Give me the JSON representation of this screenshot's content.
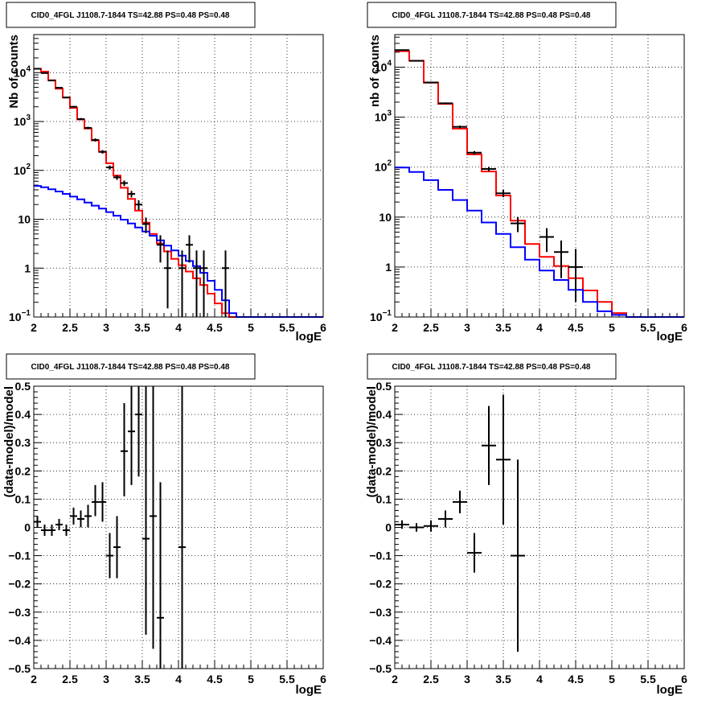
{
  "chart_data": [
    {
      "panel": "top-left",
      "type": "line",
      "title": "CID0_4FGL J1108.7-1844 TS=42.88 PS=0.48 PS=0.48",
      "xlabel": "logE",
      "ylabel": "Nb of counts",
      "xlim": [
        2,
        6
      ],
      "ylim": [
        0.1,
        60000
      ],
      "yscale": "log",
      "grid": true,
      "xticks": [
        "2",
        "2.5",
        "3",
        "3.5",
        "4",
        "4.5",
        "5",
        "5.5",
        "6"
      ],
      "yticks": [
        {
          "value": 0.1,
          "base": "10",
          "exp": "−1"
        },
        {
          "value": 1,
          "label": "1"
        },
        {
          "value": 10,
          "label": "10"
        },
        {
          "value": 100,
          "base": "10",
          "exp": "2"
        },
        {
          "value": 1000,
          "base": "10",
          "exp": "3"
        },
        {
          "value": 10000,
          "base": "10",
          "exp": "4"
        }
      ],
      "bin_edges": [
        2.0,
        2.1,
        2.2,
        2.3,
        2.4,
        2.5,
        2.6,
        2.7,
        2.8,
        2.9,
        3.0,
        3.1,
        3.2,
        3.3,
        3.4,
        3.5,
        3.6,
        3.7,
        3.8,
        3.9,
        4.0,
        4.1,
        4.2,
        4.3,
        4.4,
        4.5,
        4.6,
        4.7,
        4.8,
        4.9,
        5.0,
        5.1,
        5.2,
        5.3,
        5.4,
        5.5,
        5.6,
        5.7,
        5.8,
        5.9,
        6.0
      ],
      "series": [
        {
          "name": "",
          "kind": "step",
          "color": "#ff0000",
          "values": [
            12000,
            10500,
            7000,
            4700,
            3100,
            1900,
            1100,
            720,
            410,
            240,
            140,
            78,
            44,
            26,
            15,
            8.5,
            5,
            3.2,
            2.2,
            1.55,
            1.15,
            0.85,
            0.62,
            0.45,
            0.3,
            0.19,
            0.12,
            0.1,
            0.1,
            0.1,
            0.1,
            0.1,
            0.1,
            0.1,
            0.1,
            0.1,
            0.1,
            0.1,
            0.1,
            0.1
          ]
        },
        {
          "name": "",
          "kind": "step",
          "color": "#0000ff",
          "values": [
            48,
            45,
            41,
            37,
            33,
            29,
            25.5,
            22,
            19,
            16.5,
            14,
            11.8,
            9.8,
            8.2,
            6.8,
            5.6,
            4.6,
            3.7,
            2.9,
            2.3,
            1.8,
            1.4,
            1.1,
            0.8,
            0.55,
            0.36,
            0.22,
            0.12,
            0.1,
            0.1,
            0.1,
            0.1,
            0.1,
            0.1,
            0.1,
            0.1,
            0.1,
            0.1,
            0.1,
            0.1
          ]
        },
        {
          "name": "",
          "kind": "points",
          "color": "#000000",
          "points": [
            {
              "x": 2.05,
              "y": 12000,
              "lo": 11800,
              "hi": 12200
            },
            {
              "x": 2.15,
              "y": 9800,
              "lo": 9600,
              "hi": 10000
            },
            {
              "x": 2.25,
              "y": 6900,
              "lo": 6750,
              "hi": 7050
            },
            {
              "x": 2.35,
              "y": 4900,
              "lo": 4780,
              "hi": 5020
            },
            {
              "x": 2.45,
              "y": 3100,
              "lo": 3000,
              "hi": 3200
            },
            {
              "x": 2.55,
              "y": 2000,
              "lo": 1920,
              "hi": 2080
            },
            {
              "x": 2.65,
              "y": 1120,
              "lo": 1060,
              "hi": 1180
            },
            {
              "x": 2.75,
              "y": 740,
              "lo": 700,
              "hi": 780
            },
            {
              "x": 2.85,
              "y": 420,
              "lo": 390,
              "hi": 450
            },
            {
              "x": 2.95,
              "y": 240,
              "lo": 220,
              "hi": 260
            },
            {
              "x": 3.05,
              "y": 115,
              "lo": 104,
              "hi": 126
            },
            {
              "x": 3.15,
              "y": 72,
              "lo": 64,
              "hi": 80
            },
            {
              "x": 3.25,
              "y": 55,
              "lo": 48,
              "hi": 62
            },
            {
              "x": 3.35,
              "y": 33,
              "lo": 28,
              "hi": 38
            },
            {
              "x": 3.45,
              "y": 20,
              "lo": 15.5,
              "hi": 24.5
            },
            {
              "x": 3.55,
              "y": 8,
              "lo": 5.2,
              "hi": 10.8
            },
            {
              "x": 3.75,
              "y": 3,
              "lo": 1.3,
              "hi": 4.7
            },
            {
              "x": 3.85,
              "y": 1,
              "lo": 0.15,
              "hi": 2.3
            },
            {
              "x": 4.05,
              "y": 1,
              "lo": 0.1,
              "hi": 2.3
            },
            {
              "x": 4.15,
              "y": 3,
              "lo": 1.3,
              "hi": 4.7
            },
            {
              "x": 4.25,
              "y": 1,
              "lo": 0.1,
              "hi": 2.3
            },
            {
              "x": 4.35,
              "y": 1,
              "lo": 0.1,
              "hi": 2.3
            },
            {
              "x": 4.65,
              "y": 1,
              "lo": 0.1,
              "hi": 2.3
            }
          ]
        }
      ]
    },
    {
      "panel": "top-right",
      "type": "line",
      "title": "CID0_4FGL J1108.7-1844 TS=42.88 PS=0.48 PS=0.48",
      "xlabel": "logE",
      "ylabel": "nb of counts",
      "xlim": [
        2,
        6
      ],
      "ylim": [
        0.1,
        45000
      ],
      "yscale": "log",
      "grid": true,
      "xticks": [
        "2",
        "2.5",
        "3",
        "3.5",
        "4",
        "4.5",
        "5",
        "5.5",
        "6"
      ],
      "yticks": [
        {
          "value": 0.1,
          "base": "10",
          "exp": "−1"
        },
        {
          "value": 1,
          "label": "1"
        },
        {
          "value": 10,
          "label": "10"
        },
        {
          "value": 100,
          "base": "10",
          "exp": "2"
        },
        {
          "value": 1000,
          "base": "10",
          "exp": "3"
        },
        {
          "value": 10000,
          "base": "10",
          "exp": "4"
        }
      ],
      "bin_edges": [
        2.0,
        2.2,
        2.4,
        2.6,
        2.8,
        3.0,
        3.2,
        3.4,
        3.6,
        3.8,
        4.0,
        4.2,
        4.4,
        4.6,
        4.8,
        5.0,
        5.2,
        5.4,
        5.6,
        5.8,
        6.0
      ],
      "series": [
        {
          "name": "",
          "kind": "step",
          "color": "#ff0000",
          "values": [
            21000,
            13500,
            4900,
            1850,
            590,
            180,
            82,
            27,
            8.5,
            2.9,
            1.6,
            1.05,
            0.6,
            0.34,
            0.2,
            0.12,
            0.1,
            0.1,
            0.1,
            0.1
          ]
        },
        {
          "name": "",
          "kind": "step",
          "color": "#0000ff",
          "values": [
            98,
            80,
            55,
            35,
            22,
            13.5,
            7.8,
            4.6,
            2.5,
            1.4,
            0.85,
            0.55,
            0.35,
            0.2,
            0.13,
            0.11,
            0.1,
            0.1,
            0.1,
            0.1
          ]
        },
        {
          "name": "",
          "kind": "points",
          "color": "#000000",
          "points": [
            {
              "x": 2.1,
              "y": 22000,
              "lo": 21700,
              "hi": 22300
            },
            {
              "x": 2.3,
              "y": 13400,
              "lo": 13200,
              "hi": 13600
            },
            {
              "x": 2.5,
              "y": 4950,
              "lo": 4830,
              "hi": 5070
            },
            {
              "x": 2.7,
              "y": 1900,
              "lo": 1830,
              "hi": 1970
            },
            {
              "x": 2.9,
              "y": 640,
              "lo": 600,
              "hi": 680
            },
            {
              "x": 3.1,
              "y": 195,
              "lo": 180,
              "hi": 210
            },
            {
              "x": 3.3,
              "y": 92,
              "lo": 83,
              "hi": 101
            },
            {
              "x": 3.5,
              "y": 30,
              "lo": 25,
              "hi": 35
            },
            {
              "x": 3.7,
              "y": 7.5,
              "lo": 5,
              "hi": 10
            },
            {
              "x": 4.1,
              "y": 4,
              "lo": 2,
              "hi": 6
            },
            {
              "x": 4.3,
              "y": 2,
              "lo": 0.6,
              "hi": 3.4
            },
            {
              "x": 4.5,
              "y": 1,
              "lo": 0.2,
              "hi": 2.3
            }
          ]
        }
      ]
    },
    {
      "panel": "bottom-left",
      "type": "scatter",
      "title": "CID0_4FGL J1108.7-1844 TS=42.88 PS=0.48 PS=0.48",
      "xlabel": "logE",
      "ylabel": "(data-model)/model",
      "xlim": [
        2,
        6
      ],
      "ylim": [
        -0.5,
        0.5
      ],
      "grid": true,
      "xticks": [
        "2",
        "2.5",
        "3",
        "3.5",
        "4",
        "4.5",
        "5",
        "5.5",
        "6"
      ],
      "yticks": [
        "−0.5",
        "−0.4",
        "−0.3",
        "−0.2",
        "−0.1",
        "0",
        "0.1",
        "0.2",
        "0.3",
        "0.4",
        "0.5"
      ],
      "series": [
        {
          "name": "",
          "kind": "points",
          "color": "#000000",
          "halfwidth": 0.05,
          "points": [
            {
              "x": 2.05,
              "y": 0.02,
              "lo": 0.0,
              "hi": 0.04
            },
            {
              "x": 2.15,
              "y": -0.01,
              "lo": -0.03,
              "hi": 0.01
            },
            {
              "x": 2.25,
              "y": -0.01,
              "lo": -0.03,
              "hi": 0.01
            },
            {
              "x": 2.35,
              "y": 0.01,
              "lo": -0.01,
              "hi": 0.03
            },
            {
              "x": 2.45,
              "y": -0.01,
              "lo": -0.03,
              "hi": 0.01
            },
            {
              "x": 2.55,
              "y": 0.04,
              "lo": 0.01,
              "hi": 0.07
            },
            {
              "x": 2.65,
              "y": 0.03,
              "lo": 0.0,
              "hi": 0.06
            },
            {
              "x": 2.75,
              "y": 0.04,
              "lo": 0.0,
              "hi": 0.08
            },
            {
              "x": 2.85,
              "y": 0.09,
              "lo": 0.04,
              "hi": 0.15
            },
            {
              "x": 2.95,
              "y": 0.09,
              "lo": 0.02,
              "hi": 0.16
            },
            {
              "x": 3.05,
              "y": -0.1,
              "lo": -0.18,
              "hi": -0.02
            },
            {
              "x": 3.15,
              "y": -0.07,
              "lo": -0.18,
              "hi": 0.04
            },
            {
              "x": 3.25,
              "y": 0.27,
              "lo": 0.11,
              "hi": 0.44
            },
            {
              "x": 3.35,
              "y": 0.34,
              "lo": 0.15,
              "hi": 0.5
            },
            {
              "x": 3.45,
              "y": 0.4,
              "lo": 0.18,
              "hi": 0.5
            },
            {
              "x": 3.55,
              "y": -0.04,
              "lo": -0.38,
              "hi": 0.5
            },
            {
              "x": 3.65,
              "y": 0.04,
              "lo": -0.43,
              "hi": 0.5
            },
            {
              "x": 3.75,
              "y": -0.32,
              "lo": -0.5,
              "hi": 0.16
            },
            {
              "x": 4.05,
              "y": -0.07,
              "lo": -0.5,
              "hi": 0.5
            }
          ]
        }
      ]
    },
    {
      "panel": "bottom-right",
      "type": "scatter",
      "title": "CID0_4FGL J1108.7-1844 TS=42.88 PS=0.48 PS=0.48",
      "xlabel": "logE",
      "ylabel": "(data-model)/model",
      "xlim": [
        2,
        6
      ],
      "ylim": [
        -0.5,
        0.5
      ],
      "grid": true,
      "xticks": [
        "2",
        "2.5",
        "3",
        "3.5",
        "4",
        "4.5",
        "5",
        "5.5",
        "6"
      ],
      "yticks": [
        "−0.5",
        "−0.4",
        "−0.3",
        "−0.2",
        "−0.1",
        "0",
        "0.1",
        "0.2",
        "0.3",
        "0.4",
        "0.5"
      ],
      "series": [
        {
          "name": "",
          "kind": "points",
          "color": "#000000",
          "halfwidth": 0.1,
          "points": [
            {
              "x": 2.1,
              "y": 0.01,
              "lo": -0.005,
              "hi": 0.025
            },
            {
              "x": 2.3,
              "y": 0.0,
              "lo": -0.015,
              "hi": 0.015
            },
            {
              "x": 2.5,
              "y": 0.005,
              "lo": -0.015,
              "hi": 0.025
            },
            {
              "x": 2.7,
              "y": 0.03,
              "lo": 0.0,
              "hi": 0.06
            },
            {
              "x": 2.9,
              "y": 0.09,
              "lo": 0.05,
              "hi": 0.13
            },
            {
              "x": 3.1,
              "y": -0.09,
              "lo": -0.16,
              "hi": -0.02
            },
            {
              "x": 3.3,
              "y": 0.29,
              "lo": 0.15,
              "hi": 0.43
            },
            {
              "x": 3.5,
              "y": 0.24,
              "lo": 0.01,
              "hi": 0.47
            },
            {
              "x": 3.7,
              "y": -0.1,
              "lo": -0.44,
              "hi": 0.24
            }
          ]
        }
      ]
    }
  ]
}
